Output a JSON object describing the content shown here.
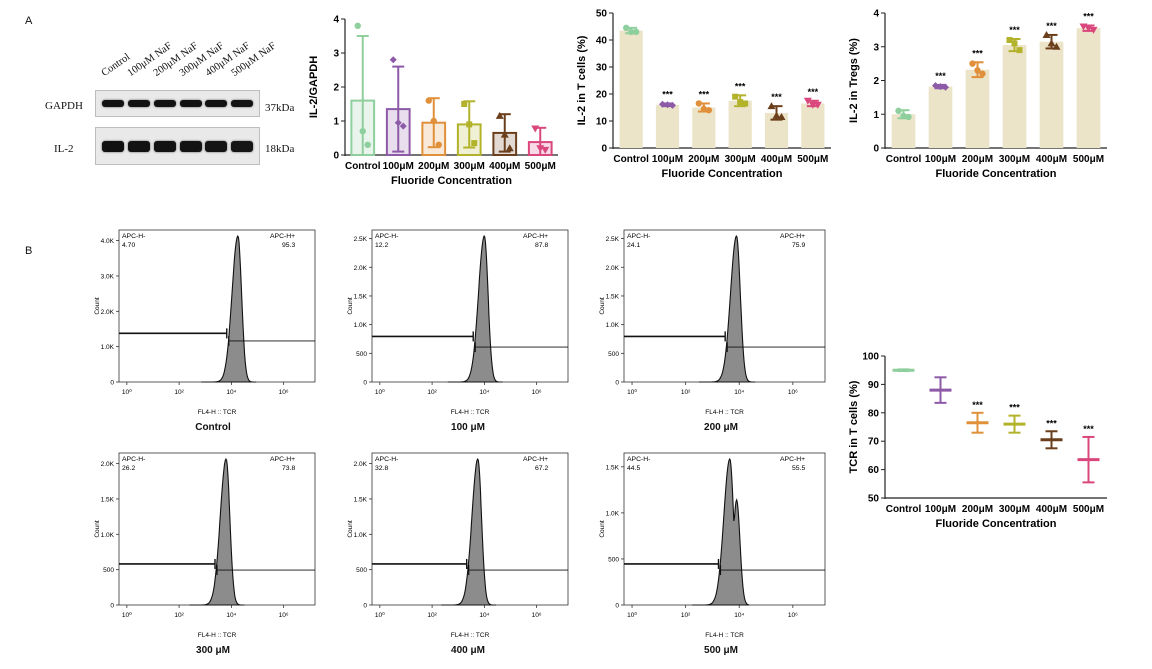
{
  "panel_letters": {
    "a": "A",
    "b": "B"
  },
  "western_blot": {
    "lanes": [
      "Control",
      "100μM NaF",
      "200μM NaF",
      "300μM NaF",
      "400μM NaF",
      "500μM NaF"
    ],
    "rows": [
      {
        "label": "GAPDH",
        "kda": "37kDa",
        "intensity": [
          0.9,
          0.9,
          0.85,
          0.9,
          0.9,
          0.85
        ]
      },
      {
        "label": "IL-2",
        "kda": "18kDa",
        "intensity": [
          0.95,
          0.9,
          0.85,
          0.85,
          0.8,
          0.75
        ]
      }
    ]
  },
  "chart_data": [
    {
      "id": "il2-gapdh",
      "type": "bar",
      "ylabel": "IL-2/GAPDH",
      "xlabel": "Fluoride Concentration",
      "categories": [
        "Control",
        "100μM",
        "200μM",
        "300μM",
        "400μM",
        "500μM"
      ],
      "values": [
        1.6,
        1.35,
        0.95,
        0.9,
        0.65,
        0.38
      ],
      "error": [
        1.9,
        1.25,
        0.72,
        0.68,
        0.55,
        0.42
      ],
      "points": [
        [
          3.8,
          0.7,
          0.3
        ],
        [
          2.8,
          0.95,
          0.85
        ],
        [
          1.6,
          1.0,
          0.3
        ],
        [
          1.5,
          0.9,
          0.35
        ],
        [
          1.15,
          0.6,
          0.2
        ],
        [
          0.78,
          0.2,
          0.15
        ]
      ],
      "ylim": [
        0,
        4
      ],
      "yticks": [
        0,
        1,
        2,
        3,
        4
      ],
      "colors": [
        "#8fcf9e",
        "#8d5aa8",
        "#e0903a",
        "#b2b32a",
        "#6b3f1c",
        "#d9477c"
      ],
      "significance": [
        "",
        "",
        "",
        "",
        "",
        ""
      ]
    },
    {
      "id": "il2-tcells",
      "type": "bar",
      "ylabel": "IL-2 in T cells (%)",
      "xlabel": "Fluoride Concentration",
      "categories": [
        "Control",
        "100μM",
        "200μM",
        "300μM",
        "400μM",
        "500μM"
      ],
      "values": [
        43.5,
        16,
        15,
        17.5,
        13,
        16.5
      ],
      "error": [
        1,
        0.5,
        1.5,
        2,
        2.5,
        1
      ],
      "points": [
        [
          44.5,
          43,
          43
        ],
        [
          16.2,
          16,
          15.8
        ],
        [
          16.5,
          14.5,
          14
        ],
        [
          19,
          17,
          16.5
        ],
        [
          15.5,
          12,
          11.5
        ],
        [
          17.5,
          16,
          16
        ]
      ],
      "ylim": [
        0,
        50
      ],
      "yticks": [
        0,
        10,
        20,
        30,
        40,
        50
      ],
      "colors": [
        "#8fcf9e",
        "#8d5aa8",
        "#e0903a",
        "#b2b32a",
        "#6b3f1c",
        "#d9477c"
      ],
      "significance": [
        "",
        "***",
        "***",
        "***",
        "***",
        "***"
      ]
    },
    {
      "id": "il2-tregs",
      "type": "bar",
      "ylabel": "IL-2 in Tregs (%)",
      "xlabel": "Fluoride Concentration",
      "categories": [
        "Control",
        "100μM",
        "200μM",
        "300μM",
        "400μM",
        "500μM"
      ],
      "values": [
        1.0,
        1.82,
        2.32,
        3.05,
        3.15,
        3.55
      ],
      "error": [
        0.12,
        0.05,
        0.22,
        0.18,
        0.2,
        0.08
      ],
      "points": [
        [
          1.1,
          0.95,
          0.92
        ],
        [
          1.85,
          1.82,
          1.8
        ],
        [
          2.5,
          2.3,
          2.2
        ],
        [
          3.2,
          3.1,
          2.9
        ],
        [
          3.35,
          3.1,
          3.0
        ],
        [
          3.6,
          3.55,
          3.5
        ]
      ],
      "ylim": [
        0,
        4
      ],
      "yticks": [
        0,
        1,
        2,
        3,
        4
      ],
      "colors": [
        "#8fcf9e",
        "#8d5aa8",
        "#e0903a",
        "#b2b32a",
        "#6b3f1c",
        "#d9477c"
      ],
      "significance": [
        "",
        "***",
        "***",
        "***",
        "***",
        "***"
      ]
    },
    {
      "id": "tcr-tcells",
      "type": "scatter",
      "ylabel": "TCR in T cells (%)",
      "xlabel": "Fluoride Concentration",
      "categories": [
        "Control",
        "100μM",
        "200μM",
        "300μM",
        "400μM",
        "500μM"
      ],
      "values": [
        95,
        88,
        76.5,
        76,
        70.5,
        63.5
      ],
      "error": [
        0.3,
        4.5,
        3.5,
        3,
        3,
        8
      ],
      "ylim": [
        50,
        100
      ],
      "yticks": [
        50,
        60,
        70,
        80,
        90,
        100
      ],
      "colors": [
        "#8fcf9e",
        "#8d5aa8",
        "#e0903a",
        "#b2b32a",
        "#6b3f1c",
        "#d9477c"
      ],
      "significance": [
        "",
        "",
        "***",
        "***",
        "***",
        "***"
      ]
    }
  ],
  "flow_panels": [
    {
      "title": "Control",
      "neg_label": "APC-H-",
      "neg_value": "4.70",
      "pos_label": "APC-H+",
      "pos_value": "95.3",
      "yticks": [
        "0",
        "1.0K",
        "2.0K",
        "3.0K",
        "4.0K"
      ],
      "ylabel": "Count",
      "xlabel": "FL4-H :: TCR",
      "peak_log": 4.25,
      "gate_y_frac": 0.27,
      "marker_y_frac": 0.32,
      "shoulder": false
    },
    {
      "title": "100 μM",
      "neg_label": "APC-H-",
      "neg_value": "12.2",
      "pos_label": "APC-H+",
      "pos_value": "87.8",
      "yticks": [
        "0",
        "500",
        "1.0K",
        "1.5K",
        "2.0K",
        "2.5K"
      ],
      "ylabel": "Count",
      "xlabel": "FL4-H :: TCR",
      "peak_log": 4.0,
      "gate_y_frac": 0.23,
      "marker_y_frac": 0.3,
      "shoulder": false
    },
    {
      "title": "200 μM",
      "neg_label": "APC-H-",
      "neg_value": "24.1",
      "pos_label": "APC-H+",
      "pos_value": "75.9",
      "yticks": [
        "0",
        "500",
        "1.0K",
        "1.5K",
        "2.0K",
        "2.5K"
      ],
      "ylabel": "Count",
      "xlabel": "FL4-H :: TCR",
      "peak_log": 3.9,
      "gate_y_frac": 0.23,
      "marker_y_frac": 0.3,
      "shoulder": false
    },
    {
      "title": "300 μM",
      "neg_label": "APC-H-",
      "neg_value": "26.2",
      "pos_label": "APC-H+",
      "pos_value": "73.8",
      "yticks": [
        "0",
        "500",
        "1.0K",
        "1.5K",
        "2.0K"
      ],
      "ylabel": "Count",
      "xlabel": "FL4-H :: TCR",
      "peak_log": 3.8,
      "gate_y_frac": 0.23,
      "marker_y_frac": 0.27,
      "shoulder": false
    },
    {
      "title": "400 μM",
      "neg_label": "APC-H-",
      "neg_value": "32.8",
      "pos_label": "APC-H+",
      "pos_value": "67.2",
      "yticks": [
        "0",
        "500",
        "1.0K",
        "1.5K",
        "2.0K"
      ],
      "ylabel": "Count",
      "xlabel": "FL4-H :: TCR",
      "peak_log": 3.75,
      "gate_y_frac": 0.23,
      "marker_y_frac": 0.27,
      "shoulder": false
    },
    {
      "title": "500 μM",
      "neg_label": "APC-H-",
      "neg_value": "44.5",
      "pos_label": "APC-H+",
      "pos_value": "55.5",
      "yticks": [
        "0",
        "500",
        "1.0K",
        "1.5K"
      ],
      "ylabel": "Count",
      "xlabel": "FL4-H :: TCR",
      "peak_log": 3.65,
      "gate_y_frac": 0.23,
      "marker_y_frac": 0.27,
      "shoulder": true
    }
  ],
  "flow_xticks": [
    "10⁰",
    "10²",
    "10⁴",
    "10⁶"
  ]
}
